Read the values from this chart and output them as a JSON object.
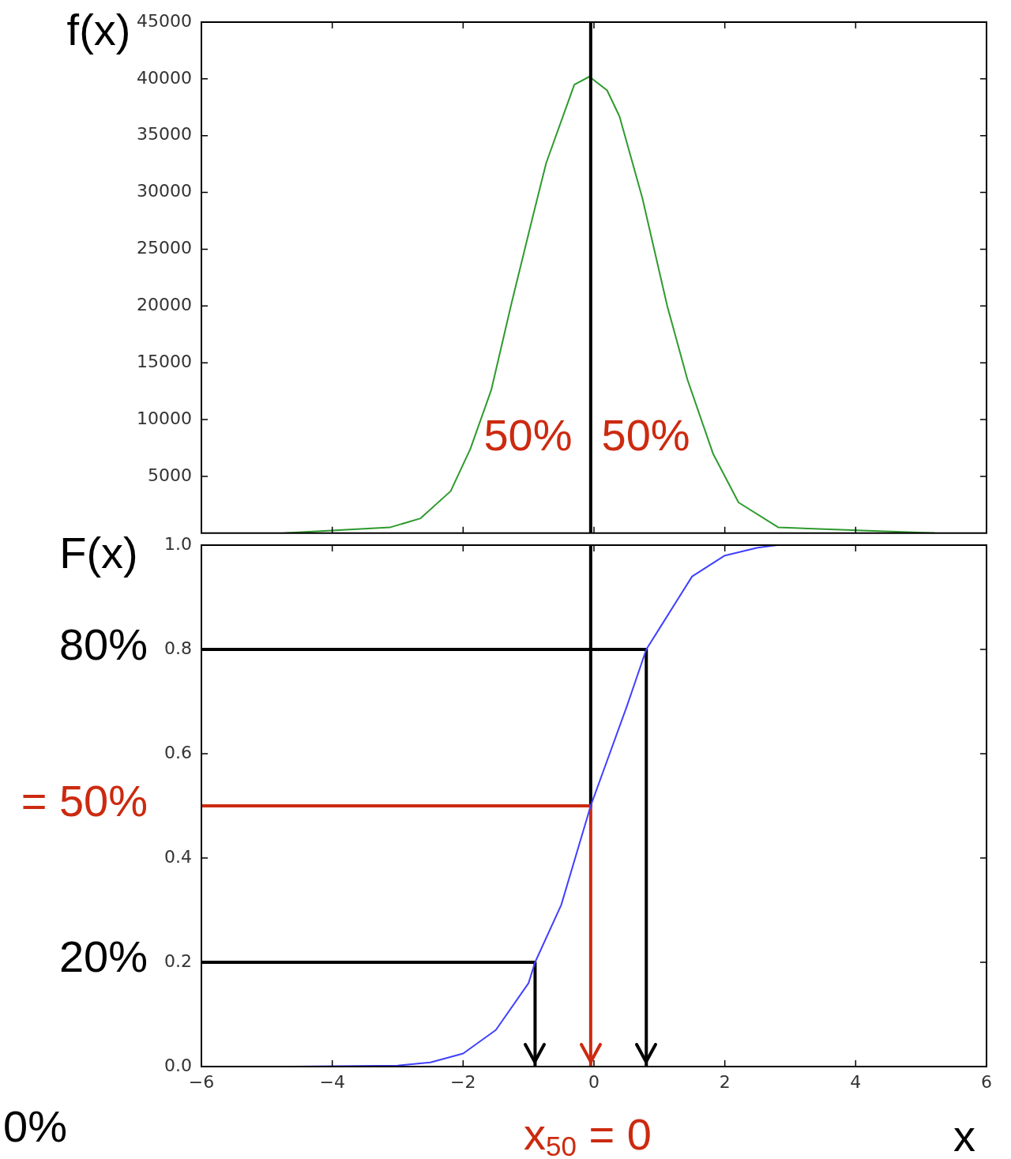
{
  "chart_data": [
    {
      "type": "line",
      "ylabel": "f(x)",
      "xlim": [
        -6,
        6
      ],
      "xticks": [
        -4,
        -2,
        0,
        2,
        4
      ],
      "ylim": [
        0,
        45000
      ],
      "yticks": [
        5000,
        10000,
        15000,
        20000,
        25000,
        30000,
        35000,
        40000,
        45000
      ],
      "tick_labels": "y",
      "grid": false,
      "legend": false,
      "marker": "none",
      "line_style": "solid",
      "series": [
        {
          "color": "#2e9a2e",
          "x": [
            -4.74,
            -3.12,
            -2.65,
            -2.19,
            -1.89,
            -1.57,
            -1.27,
            -0.96,
            -0.73,
            -0.3,
            -0.07,
            0.2,
            0.39,
            0.74,
            1.12,
            1.43,
            1.82,
            2.21,
            2.82,
            5.21
          ],
          "values": [
            0,
            500,
            1300,
            3700,
            7400,
            12600,
            20000,
            27300,
            32600,
            39500,
            40200,
            39000,
            36700,
            29500,
            20000,
            13500,
            7000,
            2700,
            500,
            0
          ]
        }
      ],
      "ref_lines": [
        {
          "axis": "x",
          "value": -0.05,
          "color": "#000000"
        }
      ],
      "annotations": [
        "50%",
        "50%"
      ]
    },
    {
      "type": "line",
      "ylabel": "F(x)",
      "xlabel": "x",
      "xlim": [
        -6,
        6
      ],
      "xticks": [
        -6,
        -4,
        -2,
        0,
        2,
        4,
        6
      ],
      "ylim": [
        0,
        1
      ],
      "yticks": [
        {
          "value": 0,
          "label": "0.0"
        },
        0.2,
        0.4,
        0.6,
        0.8,
        {
          "value": 1,
          "label": "1.0"
        }
      ],
      "grid": false,
      "legend": false,
      "marker": "none",
      "line_style": "solid",
      "series": [
        {
          "color": "#4040ff",
          "x": [
            -4.6,
            -3,
            -2.5,
            -2,
            -1.5,
            -1,
            -0.9,
            -0.5,
            -0.05,
            0.5,
            0.8,
            1,
            1.5,
            2,
            2.5,
            2.8
          ],
          "values": [
            0,
            0.002,
            0.008,
            0.025,
            0.07,
            0.16,
            0.2,
            0.31,
            0.5,
            0.69,
            0.8,
            0.84,
            0.94,
            0.98,
            0.995,
            1
          ]
        },
        {
          "color": "#000000",
          "x": [
            -6,
            0.8,
            0.8
          ],
          "values": [
            0.8,
            0.8,
            0
          ]
        },
        {
          "color": "#000000",
          "x": [
            -6,
            -0.9,
            -0.9
          ],
          "values": [
            0.2,
            0.2,
            0
          ]
        },
        {
          "color": "#cc2a10",
          "x": [
            -6,
            -0.05,
            -0.05
          ],
          "values": [
            0.5,
            0.5,
            0
          ]
        },
        {
          "color": "#000000",
          "x": [
            -0.05,
            -0.05
          ],
          "values": [
            1,
            0.5
          ]
        }
      ],
      "annotations": [
        "80%",
        "= 50%",
        "20%",
        "0%",
        "x$_{50}$ = 0"
      ]
    }
  ]
}
